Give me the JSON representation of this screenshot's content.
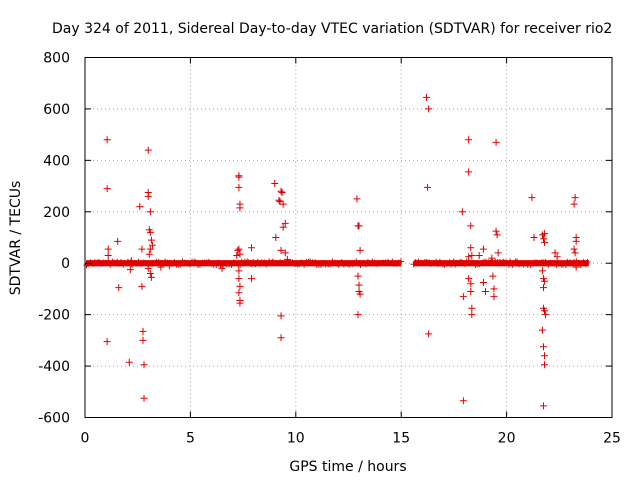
{
  "chart_data": {
    "type": "scatter",
    "title": "Day 324 of 2011, Sidereal Day-to-day VTEC variation (SDTVAR) for receiver rio2",
    "xlabel": "GPS time / hours",
    "ylabel": "SDTVAR / TECUs",
    "xlim": [
      0,
      25
    ],
    "ylim": [
      -600,
      800
    ],
    "xticks": [
      0,
      5,
      10,
      15,
      20,
      25
    ],
    "yticks": [
      -600,
      -400,
      -200,
      0,
      200,
      400,
      600,
      800
    ],
    "grid": true,
    "marker": "+",
    "color": "#e00000",
    "dense_band": {
      "description": "continuous near-zero band of points",
      "segments": [
        {
          "x_start": 0.05,
          "x_end": 15.0,
          "y_min": -12,
          "y_max": 12
        },
        {
          "x_start": 15.6,
          "x_end": 23.9,
          "y_min": -12,
          "y_max": 12
        }
      ]
    },
    "points": [
      [
        1.05,
        480
      ],
      [
        1.05,
        290
      ],
      [
        1.1,
        55
      ],
      [
        1.1,
        30
      ],
      [
        1.05,
        -305
      ],
      [
        1.55,
        85
      ],
      [
        1.6,
        -95
      ],
      [
        2.1,
        -385
      ],
      [
        2.15,
        -25
      ],
      [
        2.2,
        10
      ],
      [
        2.6,
        220
      ],
      [
        2.7,
        55
      ],
      [
        2.75,
        -265
      ],
      [
        2.75,
        -300
      ],
      [
        2.8,
        -395
      ],
      [
        2.8,
        -525
      ],
      [
        2.7,
        -90
      ],
      [
        3.0,
        440
      ],
      [
        3.0,
        275
      ],
      [
        3.0,
        260
      ],
      [
        3.1,
        200
      ],
      [
        3.05,
        130
      ],
      [
        3.1,
        120
      ],
      [
        3.15,
        90
      ],
      [
        3.2,
        70
      ],
      [
        3.1,
        55
      ],
      [
        3.05,
        35
      ],
      [
        3.1,
        -40
      ],
      [
        3.15,
        -55
      ],
      [
        3.0,
        -20
      ],
      [
        3.6,
        -15
      ],
      [
        4.0,
        -10
      ],
      [
        6.5,
        -20
      ],
      [
        7.2,
        30
      ],
      [
        7.3,
        340
      ],
      [
        7.3,
        335
      ],
      [
        7.3,
        295
      ],
      [
        7.35,
        230
      ],
      [
        7.35,
        215
      ],
      [
        7.3,
        55
      ],
      [
        7.25,
        50
      ],
      [
        7.35,
        35
      ],
      [
        7.3,
        -30
      ],
      [
        7.3,
        -60
      ],
      [
        7.35,
        -90
      ],
      [
        7.3,
        -115
      ],
      [
        7.35,
        -145
      ],
      [
        7.35,
        -155
      ],
      [
        7.9,
        60
      ],
      [
        7.9,
        -60
      ],
      [
        9.0,
        310
      ],
      [
        9.05,
        100
      ],
      [
        9.2,
        245
      ],
      [
        9.25,
        240
      ],
      [
        9.3,
        280
      ],
      [
        9.35,
        275
      ],
      [
        9.4,
        230
      ],
      [
        9.4,
        140
      ],
      [
        9.3,
        50
      ],
      [
        9.5,
        155
      ],
      [
        9.5,
        40
      ],
      [
        9.6,
        15
      ],
      [
        9.3,
        -205
      ],
      [
        9.3,
        -290
      ],
      [
        12.9,
        250
      ],
      [
        12.95,
        145
      ],
      [
        13.0,
        145
      ],
      [
        13.05,
        50
      ],
      [
        12.95,
        -50
      ],
      [
        13.0,
        -85
      ],
      [
        13.0,
        -110
      ],
      [
        13.05,
        -120
      ],
      [
        12.95,
        -200
      ],
      [
        16.2,
        645
      ],
      [
        16.3,
        600
      ],
      [
        16.25,
        295
      ],
      [
        16.3,
        -275
      ],
      [
        17.9,
        200
      ],
      [
        17.95,
        -130
      ],
      [
        17.95,
        -535
      ],
      [
        18.2,
        480
      ],
      [
        18.2,
        355
      ],
      [
        18.3,
        145
      ],
      [
        18.3,
        60
      ],
      [
        18.35,
        30
      ],
      [
        18.2,
        -60
      ],
      [
        18.3,
        -80
      ],
      [
        18.3,
        -110
      ],
      [
        18.35,
        -175
      ],
      [
        18.35,
        -200
      ],
      [
        18.2,
        25
      ],
      [
        18.7,
        30
      ],
      [
        18.9,
        55
      ],
      [
        18.9,
        -75
      ],
      [
        19.0,
        -110
      ],
      [
        19.3,
        20
      ],
      [
        19.35,
        -50
      ],
      [
        19.4,
        -100
      ],
      [
        19.4,
        -130
      ],
      [
        19.5,
        470
      ],
      [
        19.5,
        125
      ],
      [
        19.55,
        110
      ],
      [
        19.6,
        40
      ],
      [
        21.2,
        255
      ],
      [
        21.3,
        100
      ],
      [
        21.7,
        110
      ],
      [
        21.75,
        95
      ],
      [
        21.8,
        115
      ],
      [
        21.8,
        80
      ],
      [
        21.7,
        -30
      ],
      [
        21.75,
        -60
      ],
      [
        21.8,
        -70
      ],
      [
        21.75,
        -95
      ],
      [
        21.75,
        -175
      ],
      [
        21.8,
        -185
      ],
      [
        21.85,
        -200
      ],
      [
        21.7,
        -260
      ],
      [
        21.75,
        -325
      ],
      [
        21.8,
        -360
      ],
      [
        21.8,
        -395
      ],
      [
        21.75,
        -555
      ],
      [
        22.3,
        40
      ],
      [
        22.4,
        25
      ],
      [
        23.2,
        230
      ],
      [
        23.25,
        255
      ],
      [
        23.3,
        100
      ],
      [
        23.3,
        85
      ],
      [
        23.25,
        40
      ],
      [
        23.2,
        55
      ],
      [
        23.3,
        -15
      ]
    ]
  }
}
